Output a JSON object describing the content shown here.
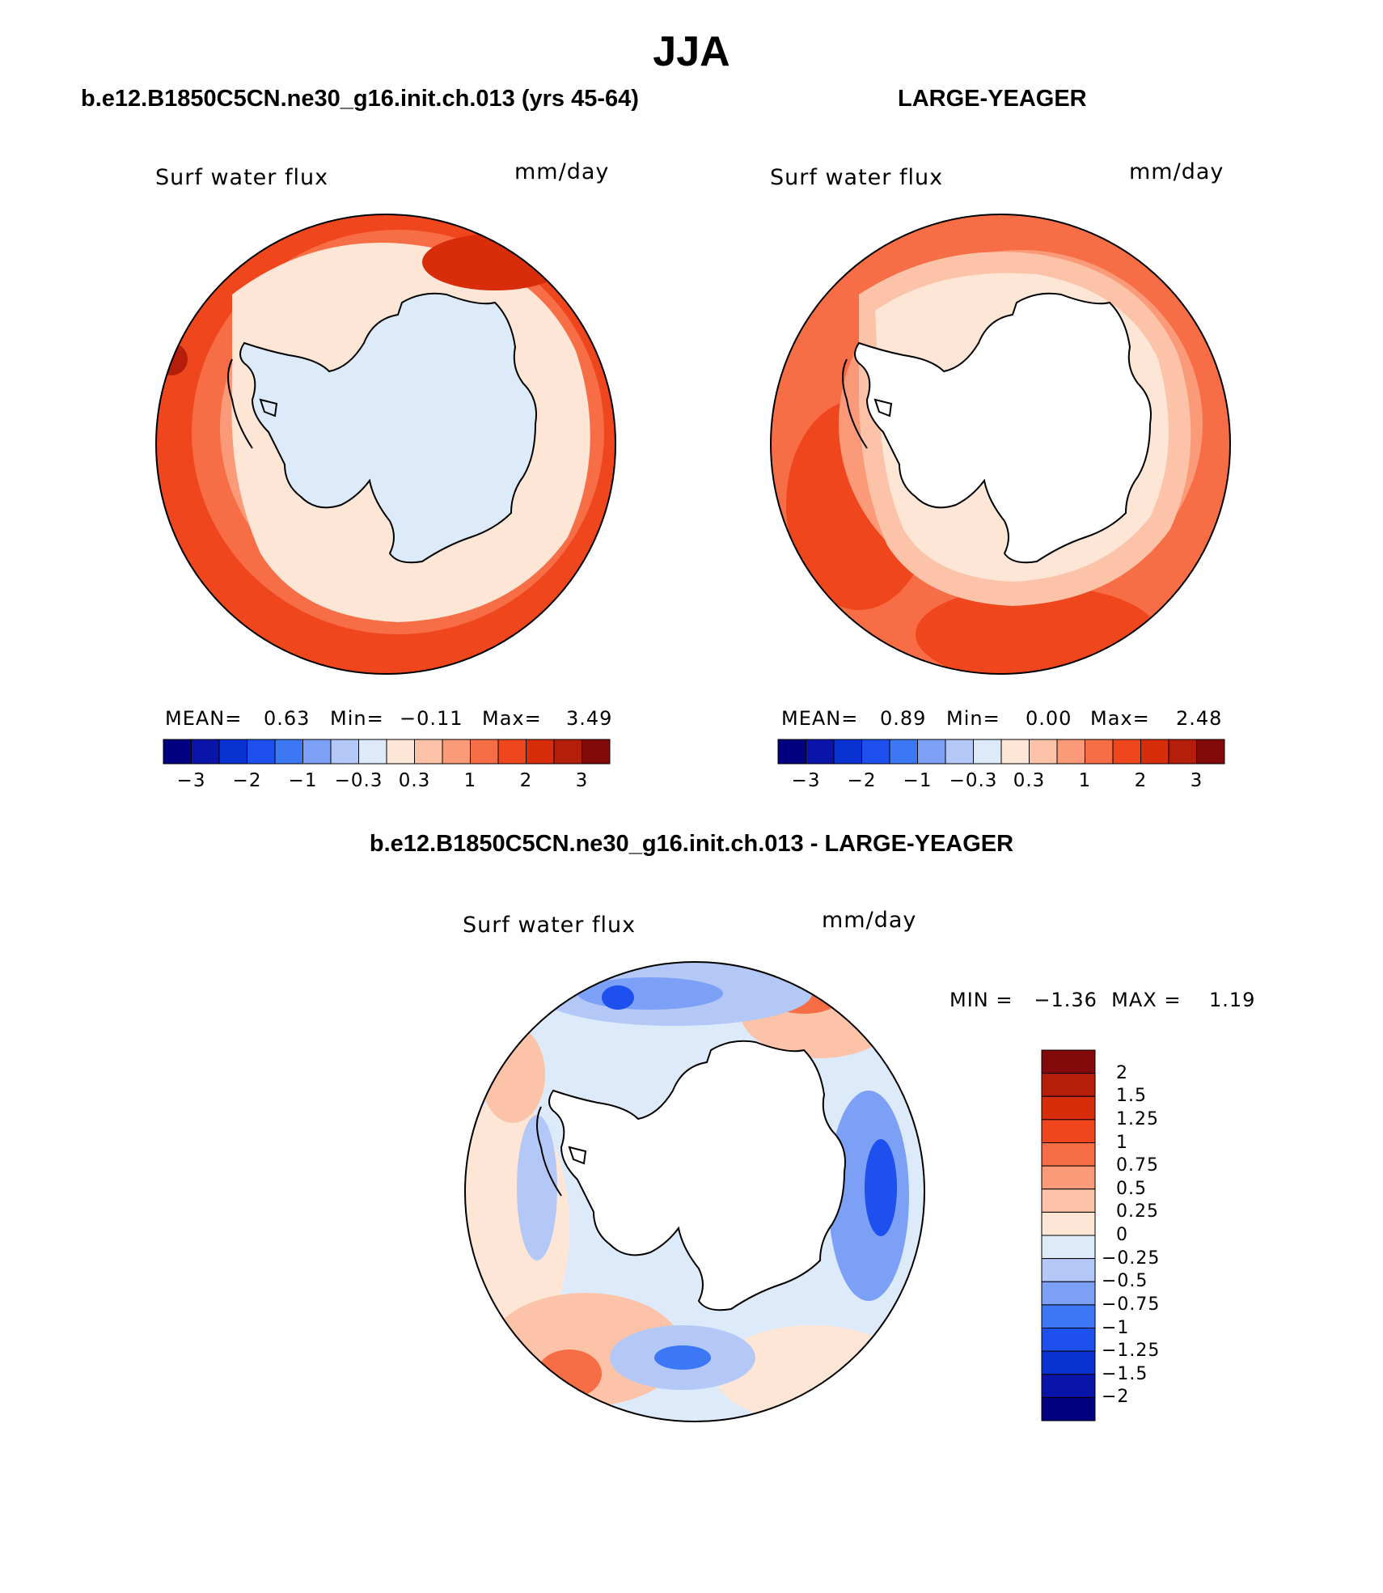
{
  "title": "JJA",
  "panels": [
    {
      "title": "b.e12.B1850C5CN.ne30_g16.init.ch.013 (yrs 45-64)",
      "variable": "Surf water flux",
      "units": "mm/day",
      "stats": {
        "mean_label": "MEAN=",
        "mean": "0.63",
        "min_label": "Min=",
        "min": "−0.11",
        "max_label": "Max=",
        "max": "3.49"
      }
    },
    {
      "title": "LARGE-YEAGER",
      "variable": "Surf water flux",
      "units": "mm/day",
      "stats": {
        "mean_label": "MEAN=",
        "mean": "0.89",
        "min_label": "Min=",
        "min": "0.00",
        "max_label": "Max=",
        "max": "2.48"
      }
    }
  ],
  "abs_colorbar": {
    "colors": [
      "#000080",
      "#0a14a8",
      "#0a32d2",
      "#1e50f0",
      "#3c78f5",
      "#7ca0f5",
      "#b4c8f8",
      "#dceafa",
      "#fde6d6",
      "#fcc3a8",
      "#fa9a78",
      "#f76d46",
      "#f0461e",
      "#d72d0a",
      "#b41e0a",
      "#820a0a"
    ],
    "tick_labels": [
      "−3",
      "−2",
      "−1",
      "−0.3",
      "0.3",
      "1",
      "2",
      "3"
    ],
    "tick_positions": [
      1,
      3,
      5,
      7,
      9,
      11,
      13,
      15
    ]
  },
  "difference_panel": {
    "title": "b.e12.B1850C5CN.ne30_g16.init.ch.013 - LARGE-YEAGER",
    "variable": "Surf water flux",
    "units": "mm/day",
    "min_max": "MIN =   −1.36  MAX =    1.19",
    "colorbar": {
      "colors_top_to_bottom": [
        "#820a0a",
        "#b41e0a",
        "#d72d0a",
        "#f0461e",
        "#f76d46",
        "#fa9a78",
        "#fcc3a8",
        "#fde6d6",
        "#dceafa",
        "#b4c8f8",
        "#7ca0f5",
        "#3c78f5",
        "#1e50f0",
        "#0a32d2",
        "#0a14a8",
        "#000080"
      ],
      "tick_labels": [
        "2",
        "1.5",
        "1.25",
        "1",
        "0.75",
        "0.5",
        "0.25",
        "0",
        "−0.25",
        "−0.5",
        "−0.75",
        "−1",
        "−1.25",
        "−1.5",
        "−2"
      ]
    }
  },
  "map_colors": {
    "land": "#dceafa",
    "ocean_outer": "#f0461e",
    "ocean_mid": "#f76d46",
    "ocean_inner": "#fa9a78",
    "ice_edge": "#fcc3a8",
    "shelf": "#fde6d6",
    "diff_base": "#dceafa",
    "diff_neg": "#7ca0f5",
    "diff_strong_neg": "#1e50f0",
    "diff_pos": "#fcc3a8",
    "diff_strong_pos": "#f76d46",
    "coast": "#000000"
  }
}
